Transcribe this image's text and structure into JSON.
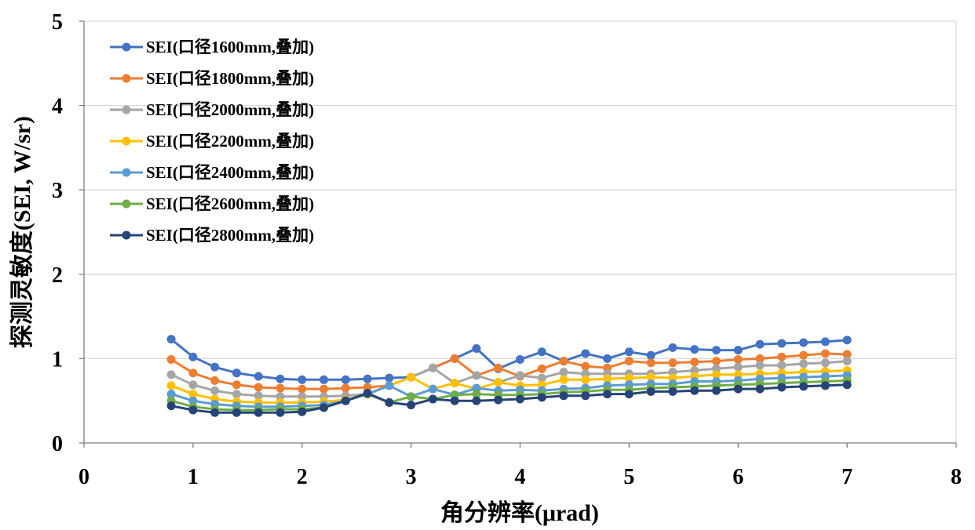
{
  "chart_data": {
    "type": "line",
    "xlabel": "角分辨率(μrad)",
    "ylabel": "探测灵敏度(SEI, W/sr)",
    "xlim": [
      0,
      8
    ],
    "ylim": [
      0,
      5
    ],
    "xticks": [
      "0",
      "1",
      "2",
      "3",
      "4",
      "5",
      "6",
      "7",
      "8"
    ],
    "yticks": [
      "0",
      "1",
      "2",
      "3",
      "4",
      "5"
    ],
    "grid": "horizontal",
    "legend_position": "top-left",
    "x": [
      0.8,
      1.0,
      1.2,
      1.4,
      1.6,
      1.8,
      2.0,
      2.2,
      2.4,
      2.6,
      2.8,
      3.0,
      3.2,
      3.4,
      3.6,
      3.8,
      4.0,
      4.2,
      4.4,
      4.6,
      4.8,
      5.0,
      5.2,
      5.4,
      5.6,
      5.8,
      6.0,
      6.2,
      6.4,
      6.6,
      6.8,
      7.0
    ],
    "series": [
      {
        "name": "SEI(口径1600mm,叠加)",
        "color": "#4472C4",
        "values": [
          1.23,
          1.02,
          0.9,
          0.83,
          0.79,
          0.76,
          0.75,
          0.75,
          0.75,
          0.76,
          0.77,
          0.78,
          0.89,
          1.0,
          1.12,
          0.88,
          0.99,
          1.08,
          0.97,
          1.06,
          1.0,
          1.08,
          1.04,
          1.13,
          1.11,
          1.1,
          1.1,
          1.17,
          1.18,
          1.19,
          1.2,
          1.22
        ]
      },
      {
        "name": "SEI(口径1800mm,叠加)",
        "color": "#ED7D31",
        "values": [
          0.99,
          0.83,
          0.74,
          0.69,
          0.66,
          0.65,
          0.64,
          0.64,
          0.65,
          0.66,
          0.68,
          0.78,
          0.89,
          1.0,
          0.8,
          0.89,
          0.79,
          0.88,
          0.97,
          0.91,
          0.89,
          0.97,
          0.95,
          0.95,
          0.96,
          0.97,
          0.99,
          1.0,
          1.02,
          1.04,
          1.06,
          1.05
        ]
      },
      {
        "name": "SEI(口径2000mm,叠加)",
        "color": "#A5A5A5",
        "values": [
          0.81,
          0.69,
          0.62,
          0.58,
          0.56,
          0.55,
          0.55,
          0.55,
          0.56,
          0.58,
          0.68,
          0.78,
          0.89,
          0.71,
          0.8,
          0.72,
          0.8,
          0.77,
          0.84,
          0.82,
          0.82,
          0.82,
          0.82,
          0.84,
          0.86,
          0.88,
          0.9,
          0.92,
          0.92,
          0.94,
          0.95,
          0.97
        ]
      },
      {
        "name": "SEI(口径2200mm,叠加)",
        "color": "#FFC000",
        "values": [
          0.68,
          0.58,
          0.52,
          0.49,
          0.48,
          0.48,
          0.48,
          0.49,
          0.51,
          0.58,
          0.68,
          0.78,
          0.64,
          0.71,
          0.64,
          0.72,
          0.68,
          0.69,
          0.75,
          0.75,
          0.76,
          0.77,
          0.78,
          0.77,
          0.79,
          0.81,
          0.81,
          0.82,
          0.83,
          0.84,
          0.85,
          0.86
        ]
      },
      {
        "name": "SEI(口径2400mm,叠加)",
        "color": "#5B9BD5",
        "values": [
          0.58,
          0.5,
          0.46,
          0.44,
          0.43,
          0.43,
          0.44,
          0.45,
          0.5,
          0.58,
          0.68,
          0.55,
          0.64,
          0.57,
          0.65,
          0.62,
          0.63,
          0.62,
          0.64,
          0.65,
          0.68,
          0.69,
          0.7,
          0.7,
          0.73,
          0.73,
          0.74,
          0.76,
          0.77,
          0.78,
          0.79,
          0.8
        ]
      },
      {
        "name": "SEI(口径2600mm,叠加)",
        "color": "#70AD47",
        "values": [
          0.5,
          0.43,
          0.4,
          0.39,
          0.39,
          0.4,
          0.4,
          0.42,
          0.5,
          0.58,
          0.48,
          0.55,
          0.52,
          0.57,
          0.58,
          0.57,
          0.57,
          0.58,
          0.6,
          0.61,
          0.63,
          0.63,
          0.65,
          0.66,
          0.67,
          0.68,
          0.69,
          0.7,
          0.71,
          0.72,
          0.73,
          0.74
        ]
      },
      {
        "name": "SEI(口径2800mm,叠加)",
        "color": "#264478",
        "values": [
          0.44,
          0.39,
          0.36,
          0.36,
          0.36,
          0.36,
          0.37,
          0.42,
          0.5,
          0.59,
          0.48,
          0.45,
          0.52,
          0.5,
          0.5,
          0.51,
          0.52,
          0.54,
          0.56,
          0.56,
          0.58,
          0.58,
          0.61,
          0.61,
          0.62,
          0.62,
          0.64,
          0.64,
          0.66,
          0.67,
          0.68,
          0.69
        ]
      }
    ]
  }
}
